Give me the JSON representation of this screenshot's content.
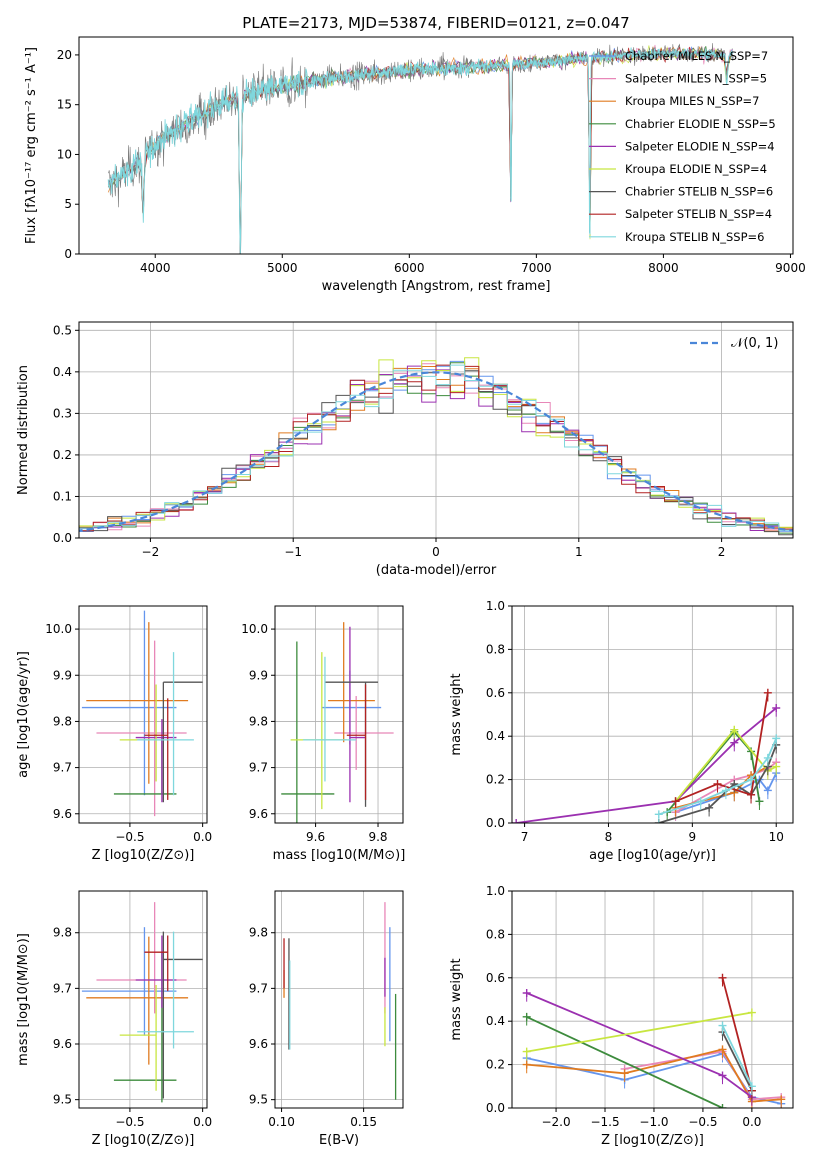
{
  "colors": {
    "Chabrier MILES": "#6495ed",
    "Salpeter MILES": "#e887b8",
    "Kroupa MILES": "#e07b20",
    "Chabrier ELODIE": "#3d8b3d",
    "Salpeter ELODIE": "#9b30b0",
    "Kroupa ELODIE": "#c8e640",
    "Chabrier STELIB": "#555555",
    "Salpeter STELIB": "#b22222",
    "Kroupa STELIB": "#7fd7dd"
  },
  "chart_data": [
    {
      "id": "spectrum",
      "type": "line",
      "title": "PLATE=2173, MJD=53874, FIBERID=0121, z=0.047",
      "xlabel": "wavelength [Angstrom, rest frame]",
      "ylabel": "Flux [fλ10⁻¹⁷ erg cm⁻² s⁻¹ A⁻¹]",
      "xlim": [
        3400,
        9020
      ],
      "ylim": [
        0,
        21.8
      ],
      "xticks": [
        4000,
        5000,
        6000,
        7000,
        8000,
        9000
      ],
      "yticks": [
        0,
        5,
        10,
        15,
        20
      ],
      "grid": false,
      "legend_position": "top-right",
      "legend": [
        {
          "name": "Chabrier MILES",
          "ssp": "N_SSP=7"
        },
        {
          "name": "Salpeter MILES",
          "ssp": "N_SSP=5"
        },
        {
          "name": "Kroupa MILES",
          "ssp": "N_SSP=7"
        },
        {
          "name": "Chabrier ELODIE",
          "ssp": "N_SSP=5"
        },
        {
          "name": "Salpeter ELODIE",
          "ssp": "N_SSP=4"
        },
        {
          "name": "Kroupa ELODIE",
          "ssp": "N_SSP=4"
        },
        {
          "name": "Chabrier STELIB",
          "ssp": "N_SSP=6"
        },
        {
          "name": "Salpeter STELIB",
          "ssp": "N_SSP=4"
        },
        {
          "name": "Kroupa STELIB",
          "ssp": "N_SSP=6"
        }
      ],
      "data_start": 3630,
      "data_end": 8550,
      "continuum_knots": [
        [
          3630,
          7.0
        ],
        [
          3700,
          7.5
        ],
        [
          3800,
          8.5
        ],
        [
          3900,
          9.5
        ],
        [
          4000,
          11.0
        ],
        [
          4100,
          12.0
        ],
        [
          4300,
          13.5
        ],
        [
          4500,
          15.0
        ],
        [
          4700,
          16.0
        ],
        [
          5000,
          16.8
        ],
        [
          5300,
          17.5
        ],
        [
          5600,
          18.0
        ],
        [
          6000,
          18.5
        ],
        [
          6500,
          18.8
        ],
        [
          7000,
          19.2
        ],
        [
          7500,
          19.8
        ],
        [
          8000,
          20.2
        ],
        [
          8550,
          20.0
        ]
      ],
      "absorption_dips": [
        [
          4670,
          1.0
        ],
        [
          6800,
          0.8
        ],
        [
          7420,
          1.0
        ],
        [
          3905,
          0.6
        ],
        [
          8500,
          0.15
        ]
      ]
    },
    {
      "id": "residual-hist",
      "type": "histogram",
      "xlabel": "(data-model)/error",
      "ylabel": "Normed distribution",
      "xlim": [
        -2.5,
        2.5
      ],
      "ylim": [
        0,
        0.52
      ],
      "xticks": [
        -2,
        -1,
        0,
        1,
        2
      ],
      "yticks": [
        0.0,
        0.1,
        0.2,
        0.3,
        0.4,
        0.5
      ],
      "grid": true,
      "bin_width": 0.1,
      "reference_curve": "N(0,1)",
      "legend": [
        "𝒩(0, 1)"
      ],
      "legend_position": "top-right"
    },
    {
      "id": "age-vs-Z",
      "type": "errorbar",
      "xlabel": "Z [log10(Z/Z⊙)]",
      "ylabel": "age  [log10(age/yr)]",
      "xlim": [
        -0.85,
        0.03
      ],
      "ylim": [
        9.58,
        10.05
      ],
      "xticks": [
        -0.5,
        0.0
      ],
      "yticks": [
        9.6,
        9.7,
        9.8,
        9.9,
        10.0
      ],
      "grid": true,
      "points": [
        {
          "name": "Chabrier MILES",
          "x": -0.4,
          "xerr": [
            0.43,
            0.22
          ],
          "y": 9.83,
          "yerr": [
            0.19,
            0.21
          ]
        },
        {
          "name": "Salpeter MILES",
          "x": -0.33,
          "xerr": [
            0.4,
            0.22
          ],
          "y": 9.775,
          "yerr": [
            0.18,
            0.2
          ]
        },
        {
          "name": "Kroupa MILES",
          "x": -0.37,
          "xerr": [
            0.43,
            0.27
          ],
          "y": 9.845,
          "yerr": [
            0.18,
            0.17
          ]
        },
        {
          "name": "Chabrier ELODIE",
          "x": -0.28,
          "xerr": [
            0.33,
            0.1
          ],
          "y": 9.643,
          "yerr": [
            0.0,
            0.12
          ]
        },
        {
          "name": "Salpeter ELODIE",
          "x": -0.28,
          "xerr": [
            0.18,
            0.1
          ],
          "y": 9.765,
          "yerr": [
            0.14,
            0.04
          ]
        },
        {
          "name": "Kroupa ELODIE",
          "x": -0.32,
          "xerr": [
            0.25,
            0.0
          ],
          "y": 9.76,
          "yerr": [
            0.09,
            0.12
          ]
        },
        {
          "name": "Chabrier STELIB",
          "x": -0.27,
          "xerr": [
            0.0,
            0.27
          ],
          "y": 9.885,
          "yerr": [
            0.26,
            0.0
          ]
        },
        {
          "name": "Salpeter STELIB",
          "x": -0.24,
          "xerr": [
            0.16,
            0.0
          ],
          "y": 9.77,
          "yerr": [
            0.14,
            0.08
          ]
        },
        {
          "name": "Kroupa STELIB",
          "x": -0.2,
          "xerr": [
            0.25,
            0.14
          ],
          "y": 9.76,
          "yerr": [
            0.12,
            0.19
          ]
        }
      ]
    },
    {
      "id": "age-vs-mass",
      "type": "errorbar",
      "xlabel": "mass [log10(M/M⊙)]",
      "ylabel": "",
      "xlim": [
        9.47,
        9.88
      ],
      "ylim": [
        9.58,
        10.05
      ],
      "xticks": [
        9.6,
        9.8
      ],
      "yticks": [
        9.6,
        9.7,
        9.8,
        9.9,
        10.0
      ],
      "grid": true,
      "points": [
        {
          "name": "Chabrier MILES",
          "x": 9.71,
          "xerr": [
            0.09,
            0.1
          ],
          "y": 9.83,
          "yerr": [
            0.08,
            0.08
          ]
        },
        {
          "name": "Salpeter MILES",
          "x": 9.73,
          "xerr": [
            0.07,
            0.12
          ],
          "y": 9.775,
          "yerr": [
            0.08,
            0.08
          ]
        },
        {
          "name": "Kroupa MILES",
          "x": 9.69,
          "xerr": [
            0.05,
            0.1
          ],
          "y": 9.845,
          "yerr": [
            0.09,
            0.17
          ]
        },
        {
          "name": "Chabrier ELODIE",
          "x": 9.54,
          "xerr": [
            0.05,
            0.12
          ],
          "y": 9.643,
          "yerr": [
            0.09,
            0.33
          ]
        },
        {
          "name": "Salpeter ELODIE",
          "x": 9.71,
          "xerr": [
            0.0,
            0.05
          ],
          "y": 9.765,
          "yerr": [
            0.14,
            0.24
          ]
        },
        {
          "name": "Kroupa ELODIE",
          "x": 9.62,
          "xerr": [
            0.1,
            0.08
          ],
          "y": 9.76,
          "yerr": [
            0.15,
            0.19
          ]
        },
        {
          "name": "Chabrier STELIB",
          "x": 9.76,
          "xerr": [
            0.13,
            0.04
          ],
          "y": 9.885,
          "yerr": [
            0.27,
            0.0
          ]
        },
        {
          "name": "Salpeter STELIB",
          "x": 9.76,
          "xerr": [
            0.06,
            0.0
          ],
          "y": 9.77,
          "yerr": [
            0.14,
            0.11
          ]
        },
        {
          "name": "Kroupa STELIB",
          "x": 9.63,
          "xerr": [
            0.07,
            0.1
          ],
          "y": 9.76,
          "yerr": [
            0.09,
            0.18
          ]
        }
      ]
    },
    {
      "id": "weight-vs-age",
      "type": "line",
      "xlabel": "age  [log10(age/yr)]",
      "ylabel": "mass weight",
      "xlim": [
        6.85,
        10.2
      ],
      "ylim": [
        0,
        1.0
      ],
      "xticks": [
        7,
        8,
        9,
        10
      ],
      "yticks": [
        0.0,
        0.2,
        0.4,
        0.6,
        0.8,
        1.0
      ],
      "grid": true,
      "series": [
        {
          "name": "Chabrier MILES",
          "x": [
            8.8,
            9.5,
            9.8,
            9.9,
            10.0
          ],
          "y": [
            0.05,
            0.14,
            0.2,
            0.15,
            0.23
          ]
        },
        {
          "name": "Salpeter MILES",
          "x": [
            8.8,
            9.5,
            9.7,
            9.9,
            10.0
          ],
          "y": [
            0.05,
            0.2,
            0.22,
            0.25,
            0.28
          ]
        },
        {
          "name": "Kroupa MILES",
          "x": [
            8.8,
            9.5,
            9.7,
            9.9
          ],
          "y": [
            0.07,
            0.14,
            0.22,
            0.26
          ]
        },
        {
          "name": "Chabrier ELODIE",
          "x": [
            8.7,
            9.5,
            9.7,
            9.8
          ],
          "y": [
            0.05,
            0.42,
            0.33,
            0.1
          ]
        },
        {
          "name": "Salpeter ELODIE",
          "x": [
            6.9,
            8.8,
            9.5,
            10.0
          ],
          "y": [
            0.0,
            0.1,
            0.37,
            0.53
          ]
        },
        {
          "name": "Kroupa ELODIE",
          "x": [
            8.8,
            9.5,
            9.9,
            10.0
          ],
          "y": [
            0.1,
            0.43,
            0.24,
            0.26
          ]
        },
        {
          "name": "Chabrier STELIB",
          "x": [
            8.6,
            9.2,
            9.5,
            9.7,
            9.9,
            10.0
          ],
          "y": [
            0.0,
            0.07,
            0.18,
            0.13,
            0.26,
            0.36
          ]
        },
        {
          "name": "Salpeter STELIB",
          "x": [
            8.8,
            9.3,
            9.7,
            9.9
          ],
          "y": [
            0.1,
            0.18,
            0.13,
            0.6
          ]
        },
        {
          "name": "Kroupa STELIB",
          "x": [
            8.6,
            9.1,
            9.4,
            9.7,
            9.9,
            10.0
          ],
          "y": [
            0.04,
            0.1,
            0.15,
            0.2,
            0.3,
            0.39
          ]
        }
      ]
    },
    {
      "id": "mass-vs-Z",
      "type": "errorbar",
      "xlabel": "Z [log10(Z/Z⊙)]",
      "ylabel": "mass [log10(M/M⊙)]",
      "xlim": [
        -0.85,
        0.03
      ],
      "ylim": [
        9.485,
        9.875
      ],
      "xticks": [
        -0.5,
        0.0
      ],
      "yticks": [
        9.5,
        9.6,
        9.7,
        9.8
      ],
      "grid": true,
      "points": [
        {
          "name": "Chabrier MILES",
          "x": -0.4,
          "xerr": [
            0.43,
            0.22
          ],
          "y": 9.695,
          "yerr": [
            0.08,
            0.115
          ]
        },
        {
          "name": "Salpeter MILES",
          "x": -0.33,
          "xerr": [
            0.4,
            0.22
          ],
          "y": 9.715,
          "yerr": [
            0.06,
            0.14
          ]
        },
        {
          "name": "Kroupa MILES",
          "x": -0.37,
          "xerr": [
            0.43,
            0.27
          ],
          "y": 9.683,
          "yerr": [
            0.12,
            0.11
          ]
        },
        {
          "name": "Chabrier ELODIE",
          "x": -0.28,
          "xerr": [
            0.33,
            0.1
          ],
          "y": 9.535,
          "yerr": [
            0.04,
            0.23
          ]
        },
        {
          "name": "Salpeter ELODIE",
          "x": -0.28,
          "xerr": [
            0.18,
            0.1
          ],
          "y": 9.715,
          "yerr": [
            0.05,
            0.08
          ]
        },
        {
          "name": "Kroupa ELODIE",
          "x": -0.32,
          "xerr": [
            0.25,
            0.0
          ],
          "y": 9.616,
          "yerr": [
            0.1,
            0.09
          ]
        },
        {
          "name": "Chabrier STELIB",
          "x": -0.27,
          "xerr": [
            0.0,
            0.27
          ],
          "y": 9.752,
          "yerr": [
            0.25,
            0.05
          ]
        },
        {
          "name": "Salpeter STELIB",
          "x": -0.24,
          "xerr": [
            0.16,
            0.0
          ],
          "y": 9.765,
          "yerr": [
            0.07,
            0.03
          ]
        },
        {
          "name": "Kroupa STELIB",
          "x": -0.2,
          "xerr": [
            0.25,
            0.14
          ],
          "y": 9.622,
          "yerr": [
            0.03,
            0.18
          ]
        }
      ]
    },
    {
      "id": "mass-vs-EBV",
      "type": "errorbar",
      "xlabel": "E(B-V)",
      "ylabel": "",
      "xlim": [
        0.096,
        0.174
      ],
      "ylim": [
        9.485,
        9.875
      ],
      "xticks": [
        0.1,
        0.15
      ],
      "yticks": [
        9.5,
        9.6,
        9.7,
        9.8
      ],
      "grid": true,
      "points": [
        {
          "name": "Chabrier MILES",
          "x": 0.166,
          "xerr": [
            0,
            0
          ],
          "y": 9.695,
          "yerr": [
            0.09,
            0.115
          ]
        },
        {
          "name": "Salpeter MILES",
          "x": 0.163,
          "xerr": [
            0,
            0
          ],
          "y": 9.715,
          "yerr": [
            0.06,
            0.14
          ]
        },
        {
          "name": "Kroupa MILES",
          "x": 0.1015,
          "xerr": [
            0,
            0
          ],
          "y": 9.683,
          "yerr": [
            0.0,
            0.05
          ]
        },
        {
          "name": "Chabrier ELODIE",
          "x": 0.1695,
          "xerr": [
            0,
            0
          ],
          "y": 9.6,
          "yerr": [
            0.1,
            0.09
          ]
        },
        {
          "name": "Salpeter ELODIE",
          "x": 0.163,
          "xerr": [
            0,
            0
          ],
          "y": 9.715,
          "yerr": [
            0.03,
            0.04
          ]
        },
        {
          "name": "Kroupa ELODIE",
          "x": 0.163,
          "xerr": [
            0,
            0
          ],
          "y": 9.616,
          "yerr": [
            0.02,
            0.05
          ]
        },
        {
          "name": "Chabrier STELIB",
          "x": 0.1045,
          "xerr": [
            0,
            0
          ],
          "y": 9.7,
          "yerr": [
            0.11,
            0.09
          ]
        },
        {
          "name": "Salpeter STELIB",
          "x": 0.1015,
          "xerr": [
            0,
            0
          ],
          "y": 9.75,
          "yerr": [
            0.05,
            0.04
          ]
        },
        {
          "name": "Kroupa STELIB",
          "x": 0.105,
          "xerr": [
            0,
            0
          ],
          "y": 9.66,
          "yerr": [
            0.07,
            0.09
          ]
        }
      ]
    },
    {
      "id": "weight-vs-Z",
      "type": "line",
      "xlabel": "Z [log10(Z/Z⊙)]",
      "ylabel": "mass weight",
      "xlim": [
        -2.45,
        0.42
      ],
      "ylim": [
        0,
        1.0
      ],
      "xticks": [
        -2.0,
        -1.5,
        -1.0,
        -0.5,
        0.0
      ],
      "yticks": [
        0.0,
        0.2,
        0.4,
        0.6,
        0.8,
        1.0
      ],
      "grid": true,
      "series": [
        {
          "name": "Chabrier MILES",
          "x": [
            -2.3,
            -1.3,
            -0.3,
            0.0,
            0.3
          ],
          "y": [
            0.23,
            0.13,
            0.25,
            0.05,
            0.02
          ]
        },
        {
          "name": "Salpeter MILES",
          "x": [
            -1.3,
            -0.3,
            0.0,
            0.3
          ],
          "y": [
            0.18,
            0.26,
            0.04,
            0.05
          ]
        },
        {
          "name": "Kroupa MILES",
          "x": [
            -2.3,
            -1.3,
            -0.3,
            0.0,
            0.3
          ],
          "y": [
            0.2,
            0.16,
            0.27,
            0.03,
            0.04
          ]
        },
        {
          "name": "Chabrier ELODIE",
          "x": [
            -2.3,
            -0.3
          ],
          "y": [
            0.42,
            0.0
          ]
        },
        {
          "name": "Salpeter ELODIE",
          "x": [
            -2.3,
            -0.3,
            0.0
          ],
          "y": [
            0.53,
            0.15,
            0.05
          ]
        },
        {
          "name": "Kroupa ELODIE",
          "x": [
            -2.3,
            0.0
          ],
          "y": [
            0.26,
            0.44
          ]
        },
        {
          "name": "Chabrier STELIB",
          "x": [
            -0.3,
            0.0
          ],
          "y": [
            0.35,
            0.08
          ]
        },
        {
          "name": "Salpeter STELIB",
          "x": [
            -0.3,
            0.0
          ],
          "y": [
            0.6,
            0.08
          ]
        },
        {
          "name": "Kroupa STELIB",
          "x": [
            -0.3,
            0.0
          ],
          "y": [
            0.38,
            0.1
          ]
        }
      ]
    }
  ]
}
